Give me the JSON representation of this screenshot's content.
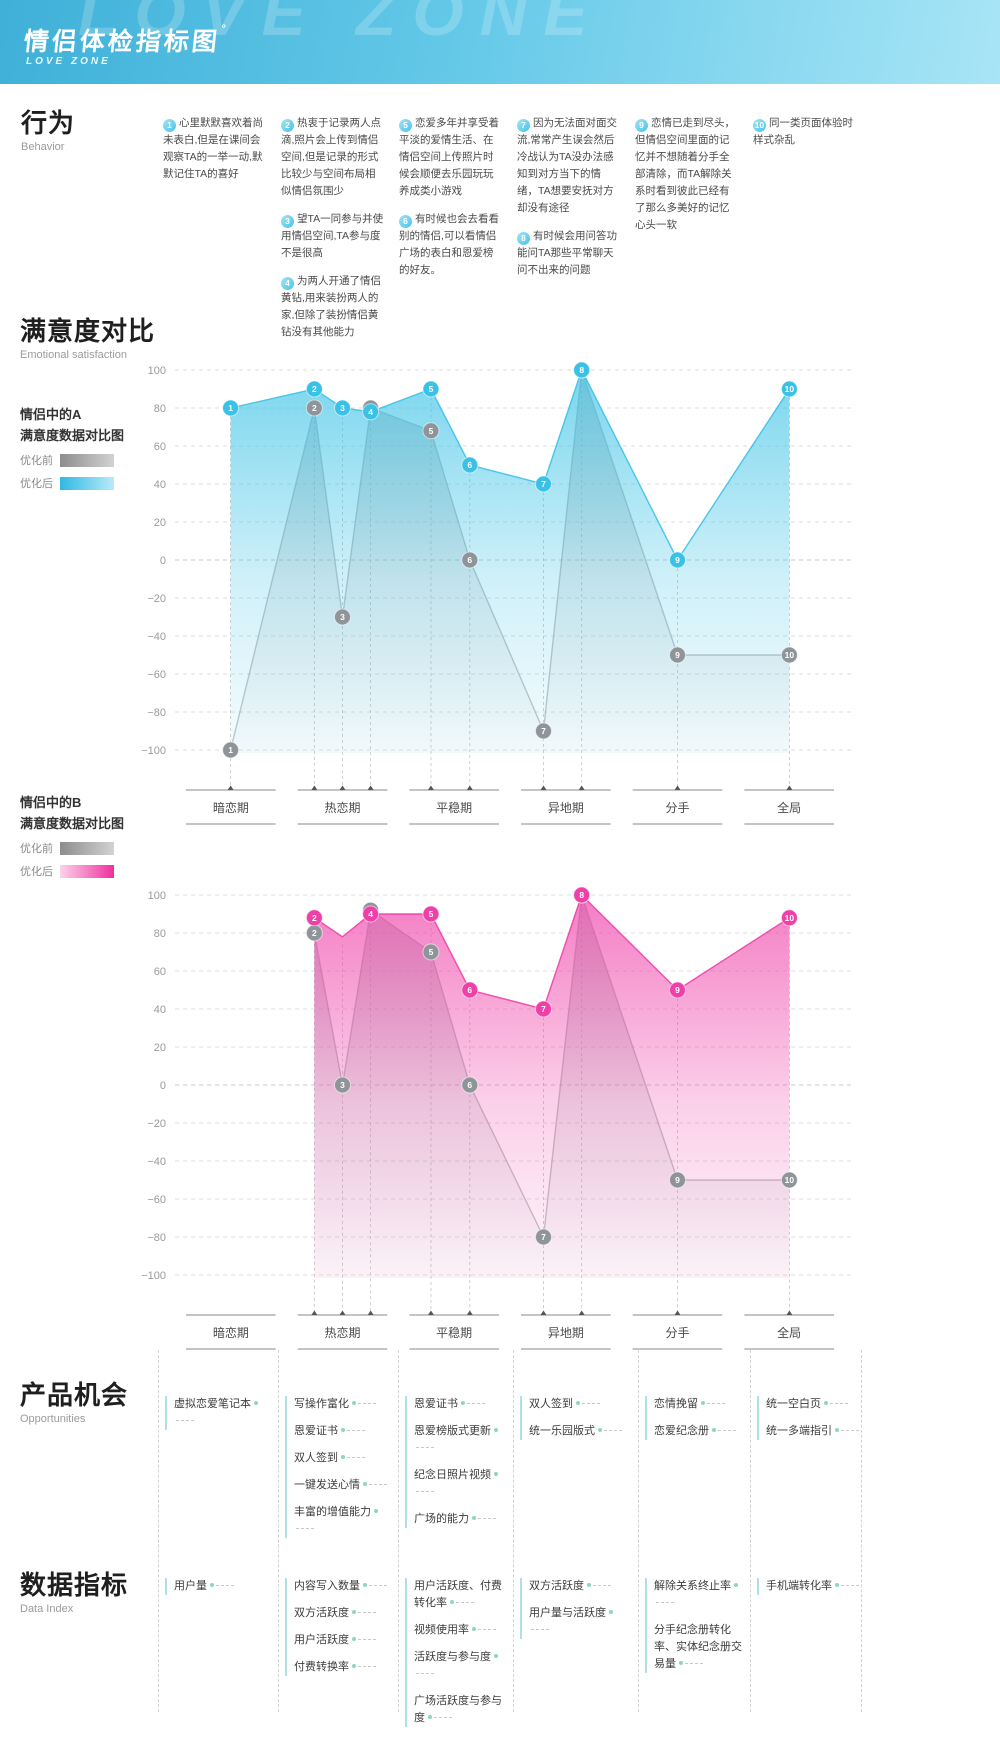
{
  "header": {
    "title": "情侣体检指标图",
    "title_mark": "°",
    "subtitle": "LOVE ZONE",
    "watermark": "LOVE ZONE",
    "bg_left": "#3fb0d8",
    "bg_right": "#a8e5f6"
  },
  "behavior": {
    "title": "行为",
    "subtitle": "Behavior",
    "columns": [
      [
        {
          "n": 1,
          "text": "心里默默喜欢着尚未表白,但是在课间会观察TA的一举一动,默默记住TA的喜好"
        }
      ],
      [
        {
          "n": 2,
          "text": "热衷于记录两人点滴,照片会上传到情侣空间,但是记录的形式比较少与空间布局相似情侣氛围少"
        },
        {
          "n": 3,
          "text": "望TA一同参与并使用情侣空间,TA参与度不是很高"
        },
        {
          "n": 4,
          "text": "为两人开通了情侣黄钻,用来装扮两人的家,但除了装扮情侣黄钻没有其他能力"
        }
      ],
      [
        {
          "n": 5,
          "text": "恋爱多年并享受着平淡的爱情生活、在情侣空间上传照片时候会顺便去乐园玩玩养成类小游戏"
        },
        {
          "n": 6,
          "text": "有时候也会去看看别的情侣,可以看情侣广场的表白和恩爱榜的好友。"
        }
      ],
      [
        {
          "n": 7,
          "text": "因为无法面对面交流,常常产生误会然后冷战认为TA没办法感知到对方当下的情绪，TA想要安抚对方却没有途径"
        },
        {
          "n": 8,
          "text": "有时候会用问答功能问TA那些平常聊天问不出来的问题"
        }
      ],
      [
        {
          "n": 9,
          "text": "恋情已走到尽头，但情侣空间里面的记忆并不想随着分手全部清除，而TA解除关系时看到彼此已经有了那么多美好的记忆心头一软"
        }
      ],
      [
        {
          "n": 10,
          "text": "同一类页面体验时样式杂乱"
        }
      ]
    ]
  },
  "satisfaction": {
    "title": "满意度对比",
    "subtitle": "Emotional satisfaction",
    "legend_before": "优化前",
    "legend_after": "优化后",
    "chart_a_title_l1": "情侣中的A",
    "chart_a_title_l2": "满意度数据对比图",
    "chart_b_title_l1": "情侣中的B",
    "chart_b_title_l2": "满意度数据对比图"
  },
  "chart_data": [
    {
      "type": "area",
      "name": "A",
      "title": "情侣中的A 满意度数据对比图",
      "categories": [
        "暗恋期",
        "热恋期",
        "平稳期",
        "异地期",
        "分手",
        "全局"
      ],
      "ylim": [
        -100,
        100
      ],
      "yticks": [
        100,
        80,
        60,
        40,
        20,
        0,
        -20,
        -40,
        -60,
        -80,
        -100
      ],
      "grid": true,
      "legend_position": "left",
      "series": [
        {
          "name": "优化前",
          "role": "before",
          "color": "#919a9e",
          "points": [
            {
              "n": 1,
              "x": 0.083,
              "v": -100
            },
            {
              "n": 2,
              "x": 0.208,
              "v": 80
            },
            {
              "n": 3,
              "x": 0.25,
              "v": -30
            },
            {
              "n": 4,
              "x": 0.292,
              "v": 80
            },
            {
              "n": 5,
              "x": 0.382,
              "v": 68
            },
            {
              "n": 6,
              "x": 0.44,
              "v": 0
            },
            {
              "n": 7,
              "x": 0.55,
              "v": -90
            },
            {
              "n": 8,
              "x": 0.607,
              "v": 100
            },
            {
              "n": 9,
              "x": 0.75,
              "v": -50
            },
            {
              "n": 10,
              "x": 0.917,
              "v": -50
            }
          ]
        },
        {
          "name": "优化后",
          "role": "after",
          "color": "#3ac2e6",
          "points": [
            {
              "n": 1,
              "x": 0.083,
              "v": 80
            },
            {
              "n": 2,
              "x": 0.208,
              "v": 90
            },
            {
              "n": 3,
              "x": 0.25,
              "v": 80
            },
            {
              "n": 4,
              "x": 0.292,
              "v": 78
            },
            {
              "n": 5,
              "x": 0.382,
              "v": 90
            },
            {
              "n": 6,
              "x": 0.44,
              "v": 50
            },
            {
              "n": 7,
              "x": 0.55,
              "v": 40
            },
            {
              "n": 8,
              "x": 0.607,
              "v": 100
            },
            {
              "n": 9,
              "x": 0.75,
              "v": 0
            },
            {
              "n": 10,
              "x": 0.917,
              "v": 90
            }
          ]
        }
      ]
    },
    {
      "type": "area",
      "name": "B",
      "title": "情侣中的B 满意度数据对比图",
      "categories": [
        "暗恋期",
        "热恋期",
        "平稳期",
        "异地期",
        "分手",
        "全局"
      ],
      "ylim": [
        -100,
        100
      ],
      "yticks": [
        100,
        80,
        60,
        40,
        20,
        0,
        -20,
        -40,
        -60,
        -80,
        -100
      ],
      "grid": true,
      "legend_position": "left",
      "series": [
        {
          "name": "优化前",
          "role": "before",
          "color": "#919a9e",
          "points": [
            {
              "n": 2,
              "x": 0.208,
              "v": 80
            },
            {
              "n": 3,
              "x": 0.25,
              "v": 0
            },
            {
              "n": 4,
              "x": 0.292,
              "v": 92
            },
            {
              "n": 5,
              "x": 0.382,
              "v": 70
            },
            {
              "n": 6,
              "x": 0.44,
              "v": 0
            },
            {
              "n": 7,
              "x": 0.55,
              "v": -80
            },
            {
              "n": 8,
              "x": 0.607,
              "v": 100
            },
            {
              "n": 9,
              "x": 0.75,
              "v": -50
            },
            {
              "n": 10,
              "x": 0.917,
              "v": -50
            }
          ]
        },
        {
          "name": "优化后",
          "role": "after",
          "color": "#ef3fa8",
          "points": [
            {
              "n": 2,
              "x": 0.208,
              "v": 88
            },
            {
              "n": 3,
              "x": 0.25,
              "v": 78,
              "marker": false
            },
            {
              "n": 4,
              "x": 0.292,
              "v": 90
            },
            {
              "n": 5,
              "x": 0.382,
              "v": 90
            },
            {
              "n": 6,
              "x": 0.44,
              "v": 50
            },
            {
              "n": 7,
              "x": 0.55,
              "v": 40
            },
            {
              "n": 8,
              "x": 0.607,
              "v": 100
            },
            {
              "n": 9,
              "x": 0.75,
              "v": 50
            },
            {
              "n": 10,
              "x": 0.917,
              "v": 88
            }
          ]
        }
      ]
    }
  ],
  "opportunities": {
    "title": "产品机会",
    "subtitle": "Opportunities",
    "columns": [
      [
        "虚拟恋爱笔记本"
      ],
      [
        "写操作富化",
        "恩爱证书",
        "双人签到",
        "一键发送心情",
        "丰富的增值能力"
      ],
      [
        "恩爱证书",
        "恩爱榜版式更新",
        "纪念日照片视频",
        "广场的能力"
      ],
      [
        "双人签到",
        "统一乐园版式"
      ],
      [
        "恋情挽留",
        "恋爱纪念册"
      ],
      [
        "统一空白页",
        "统一多端指引"
      ]
    ]
  },
  "data_index": {
    "title": "数据指标",
    "subtitle": "Data Index",
    "columns": [
      [
        "用户量"
      ],
      [
        "内容写入数量",
        "双方活跃度",
        "用户活跃度",
        "付费转换率"
      ],
      [
        "用户活跃度、付费转化率",
        "视频使用率",
        "活跃度与参与度",
        "广场活跃度与参与度"
      ],
      [
        "双方活跃度",
        "用户量与活跃度"
      ],
      [
        "解除关系终止率",
        "分手纪念册转化率、实体纪念册交易量"
      ],
      [
        "手机端转化率"
      ]
    ]
  },
  "colors": {
    "accent_cyan": "#3ac2e6",
    "accent_pink": "#ef3fa8",
    "series_gray": "#919a9e",
    "teal_dot": "#8bd6cb"
  }
}
